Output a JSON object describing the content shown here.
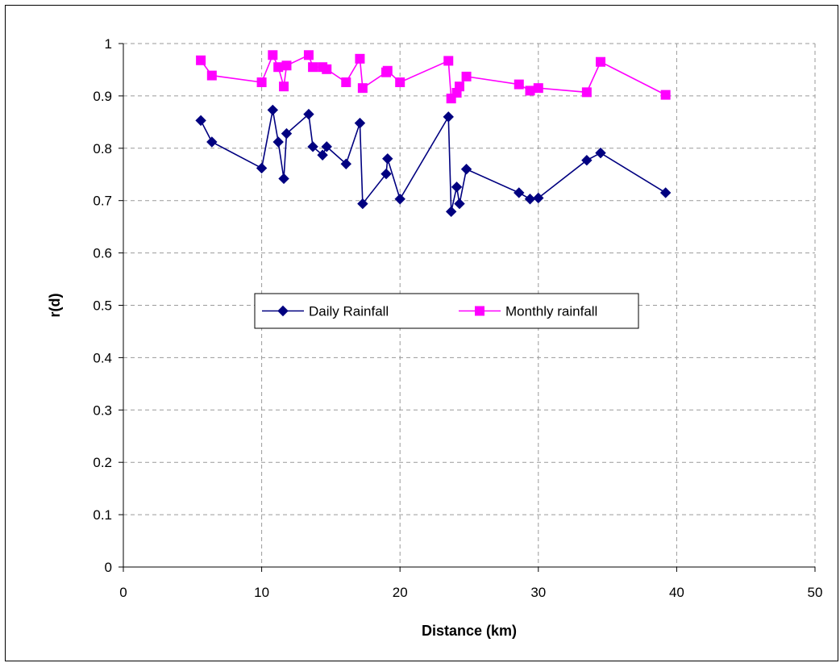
{
  "chart_data": {
    "type": "line",
    "xlabel": "Distance (km)",
    "ylabel": "r(d)",
    "xlim": [
      0,
      50
    ],
    "ylim": [
      0,
      1
    ],
    "x_ticks": [
      0,
      10,
      20,
      30,
      40,
      50
    ],
    "y_ticks": [
      0,
      0.1,
      0.2,
      0.3,
      0.4,
      0.5,
      0.6,
      0.7,
      0.8,
      0.9,
      1
    ],
    "grid": true,
    "legend_placement": "center",
    "series": [
      {
        "name": "Daily Rainfall",
        "color": "#000080",
        "marker": "diamond",
        "points": [
          [
            5.6,
            0.853
          ],
          [
            6.4,
            0.812
          ],
          [
            10.0,
            0.762
          ],
          [
            10.8,
            0.873
          ],
          [
            11.2,
            0.812
          ],
          [
            11.6,
            0.742
          ],
          [
            11.8,
            0.828
          ],
          [
            13.4,
            0.865
          ],
          [
            13.7,
            0.803
          ],
          [
            14.4,
            0.787
          ],
          [
            14.7,
            0.803
          ],
          [
            16.1,
            0.77
          ],
          [
            17.1,
            0.848
          ],
          [
            17.3,
            0.694
          ],
          [
            19.0,
            0.751
          ],
          [
            19.1,
            0.78
          ],
          [
            20.0,
            0.703
          ],
          [
            23.5,
            0.86
          ],
          [
            23.7,
            0.679
          ],
          [
            24.1,
            0.726
          ],
          [
            24.3,
            0.694
          ],
          [
            24.8,
            0.76
          ],
          [
            28.6,
            0.715
          ],
          [
            29.4,
            0.703
          ],
          [
            30.0,
            0.705
          ],
          [
            33.5,
            0.777
          ],
          [
            34.5,
            0.791
          ],
          [
            39.2,
            0.715
          ]
        ]
      },
      {
        "name": "Monthly rainfall",
        "color": "#FF00FF",
        "marker": "square",
        "points": [
          [
            5.6,
            0.968
          ],
          [
            6.4,
            0.939
          ],
          [
            10.0,
            0.926
          ],
          [
            10.8,
            0.978
          ],
          [
            11.2,
            0.955
          ],
          [
            11.6,
            0.918
          ],
          [
            11.8,
            0.958
          ],
          [
            13.4,
            0.978
          ],
          [
            13.7,
            0.955
          ],
          [
            14.4,
            0.955
          ],
          [
            14.7,
            0.951
          ],
          [
            16.1,
            0.926
          ],
          [
            17.1,
            0.971
          ],
          [
            17.3,
            0.915
          ],
          [
            19.0,
            0.945
          ],
          [
            19.1,
            0.948
          ],
          [
            20.0,
            0.926
          ],
          [
            23.5,
            0.967
          ],
          [
            23.7,
            0.895
          ],
          [
            24.1,
            0.906
          ],
          [
            24.3,
            0.918
          ],
          [
            24.8,
            0.937
          ],
          [
            28.6,
            0.922
          ],
          [
            29.4,
            0.91
          ],
          [
            30.0,
            0.915
          ],
          [
            33.5,
            0.907
          ],
          [
            34.5,
            0.965
          ],
          [
            39.2,
            0.902
          ]
        ]
      }
    ]
  }
}
